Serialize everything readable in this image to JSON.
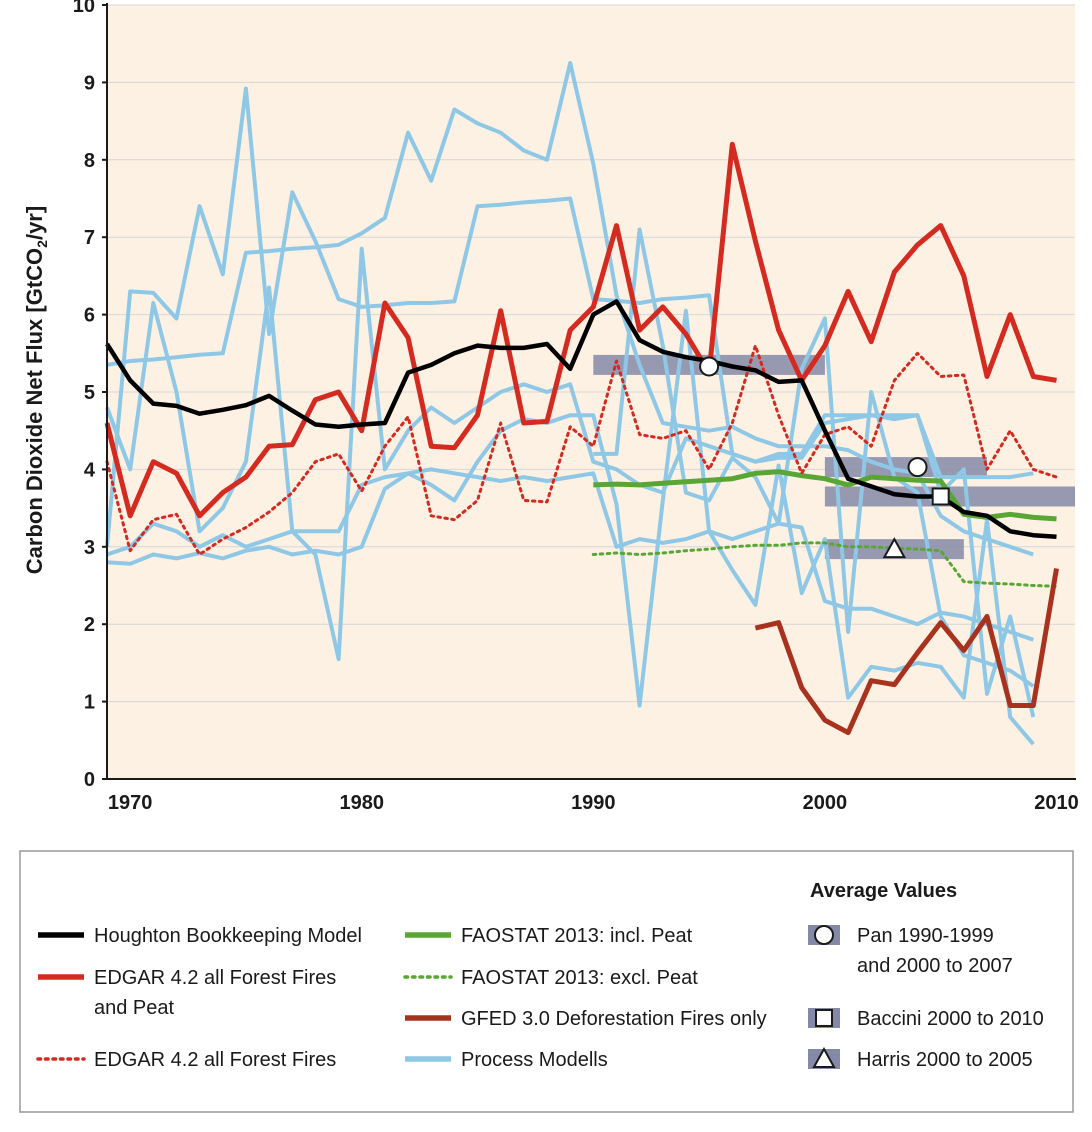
{
  "chart_data": {
    "type": "line",
    "ylabel": "Carbon Dioxide Net Flux [GtCO2/yr]",
    "ylabel_parts": {
      "main": "Carbon Dioxide Net Flux [GtCO",
      "sub": "2",
      "tail": "/yr]"
    },
    "xlim": [
      1969,
      2010.8
    ],
    "ylim": [
      0,
      10
    ],
    "x_ticks": [
      1970,
      1980,
      1990,
      2000,
      2010
    ],
    "y_ticks": [
      0,
      1,
      2,
      3,
      4,
      5,
      6,
      7,
      8,
      9,
      10
    ],
    "grid": "horizontal",
    "background": "#fdf1e3",
    "series": [
      {
        "name": "Process Modells",
        "color": "#8ec8e6",
        "style": "solid",
        "x": [
          1969,
          1970,
          1971,
          1972,
          1973,
          1974,
          1975,
          1976,
          1977,
          1978,
          1979,
          1980,
          1981,
          1982,
          1983,
          1984,
          1985,
          1986,
          1987,
          1988,
          1989,
          1990,
          1991,
          1992,
          1993,
          1994,
          1995,
          1996,
          1997,
          1998,
          1999,
          2000,
          2001,
          2002,
          2003,
          2004,
          2005,
          2006,
          2007,
          2008,
          2009
        ],
        "y": [
          4.8,
          4.0,
          6.15,
          5.0,
          3.2,
          3.5,
          4.1,
          6.35,
          3.2,
          2.9,
          1.55,
          6.85,
          4.0,
          4.5,
          4.8,
          4.6,
          4.8,
          5.0,
          5.1,
          5.0,
          5.1,
          4.1,
          4.0,
          3.8,
          3.7,
          4.4,
          4.3,
          4.2,
          4.1,
          4.2,
          4.2,
          4.7,
          4.7,
          4.7,
          4.7,
          4.7,
          3.9,
          3.9,
          3.9,
          3.9,
          3.95
        ]
      },
      {
        "name": "Process Modells",
        "color": "#8ec8e6",
        "style": "solid",
        "x": [
          1969,
          1970,
          1971,
          1972,
          1973,
          1974,
          1975,
          1976,
          1977,
          1978,
          1979,
          1980,
          1981,
          1982,
          1983,
          1984,
          1985,
          1986,
          1987,
          1988,
          1989,
          1990,
          1991,
          1992,
          1993,
          1994,
          1995,
          1996,
          1997,
          1998,
          1999,
          2000,
          2001,
          2002,
          2003,
          2004,
          2005,
          2006,
          2007,
          2008,
          2009
        ],
        "y": [
          5.35,
          5.4,
          5.42,
          5.45,
          5.48,
          5.5,
          6.8,
          6.82,
          6.85,
          6.87,
          6.9,
          7.05,
          7.25,
          8.35,
          7.73,
          8.65,
          8.47,
          8.35,
          8.12,
          8.0,
          9.25,
          7.95,
          6.25,
          5.35,
          4.6,
          4.55,
          4.5,
          4.55,
          4.4,
          4.3,
          4.3,
          4.3,
          4.25,
          4.1,
          4.0,
          3.95,
          3.4,
          3.2,
          3.1,
          3.0,
          2.9
        ]
      },
      {
        "name": "Process Modells",
        "color": "#8ec8e6",
        "style": "solid",
        "x": [
          1969,
          1970,
          1971,
          1972,
          1973,
          1974,
          1975,
          1976,
          1977,
          1978,
          1979,
          1980,
          1981,
          1982,
          1983,
          1984,
          1985,
          1986,
          1987,
          1988,
          1989,
          1990,
          1991,
          1992,
          1993,
          1994,
          1995,
          1996,
          1997,
          1998,
          1999,
          2000,
          2001,
          2002,
          2003,
          2004,
          2005,
          2006,
          2007,
          2008,
          2009
        ],
        "y": [
          3.0,
          6.3,
          6.28,
          5.95,
          7.4,
          6.52,
          8.92,
          5.75,
          7.58,
          6.95,
          6.2,
          6.1,
          6.12,
          6.15,
          6.15,
          6.17,
          7.4,
          7.42,
          7.45,
          7.47,
          7.5,
          6.2,
          6.18,
          6.15,
          6.2,
          6.22,
          6.25,
          4.2,
          4.1,
          4.15,
          4.15,
          4.6,
          4.65,
          4.7,
          4.65,
          4.7,
          3.7,
          4.0,
          1.1,
          2.1,
          0.8
        ]
      },
      {
        "name": "Process Modells",
        "color": "#8ec8e6",
        "style": "solid",
        "x": [
          1969,
          1970,
          1971,
          1972,
          1973,
          1974,
          1975,
          1976,
          1977,
          1978,
          1979,
          1980,
          1981,
          1982,
          1983,
          1984,
          1985,
          1986,
          1987,
          1988,
          1989,
          1990,
          1991,
          1992,
          1993,
          1994,
          1995,
          1996,
          1997,
          1998,
          1999,
          2000,
          2001,
          2002,
          2003,
          2004,
          2005,
          2006,
          2007,
          2008,
          2009
        ],
        "y": [
          2.8,
          2.78,
          2.9,
          2.85,
          2.92,
          2.85,
          2.95,
          3.0,
          2.9,
          2.95,
          2.9,
          3.0,
          3.75,
          3.95,
          4.0,
          3.95,
          3.9,
          3.85,
          3.9,
          3.85,
          3.9,
          3.95,
          3.0,
          3.1,
          3.05,
          3.1,
          3.2,
          3.1,
          3.2,
          3.3,
          3.25,
          2.3,
          2.2,
          2.2,
          2.1,
          2.0,
          2.15,
          2.1,
          2.0,
          1.9,
          1.8
        ]
      },
      {
        "name": "Process Modells",
        "color": "#8ec8e6",
        "style": "solid",
        "x": [
          1969,
          1970,
          1971,
          1972,
          1973,
          1974,
          1975,
          1976,
          1977,
          1978,
          1979,
          1980,
          1981,
          1982,
          1983,
          1984,
          1985,
          1986,
          1987,
          1988,
          1989,
          1990,
          1991,
          1992,
          1993,
          1994,
          1995,
          1996,
          1997,
          1998,
          1999,
          2000,
          2001,
          2002,
          2003,
          2004,
          2005,
          2006,
          2007,
          2008,
          2009
        ],
        "y": [
          2.9,
          3.0,
          3.3,
          3.2,
          3.0,
          3.15,
          3.0,
          3.1,
          3.2,
          3.2,
          3.2,
          3.8,
          3.9,
          3.95,
          3.8,
          3.6,
          4.1,
          4.5,
          4.65,
          4.6,
          4.7,
          4.7,
          3.55,
          0.95,
          3.6,
          6.05,
          3.2,
          2.7,
          2.25,
          4.05,
          2.4,
          3.1,
          1.05,
          1.45,
          1.4,
          1.5,
          1.45,
          1.05,
          3.35,
          0.8,
          0.45
        ]
      },
      {
        "name": "Process Modells",
        "color": "#8ec8e6",
        "style": "solid",
        "x": [
          1990,
          1991,
          1992,
          1993,
          1994,
          1995,
          1996,
          1997,
          1998,
          1999,
          2000,
          2001,
          2002,
          2003,
          2004,
          2005,
          2006,
          2007,
          2008,
          2009
        ],
        "y": [
          4.2,
          4.2,
          7.1,
          5.6,
          3.7,
          3.6,
          4.15,
          3.9,
          3.3,
          5.3,
          5.95,
          1.9,
          5.0,
          3.9,
          3.7,
          2.1,
          1.6,
          1.5,
          1.4,
          1.2
        ]
      },
      {
        "name": "FAOSTAT 2013: excl. Peat",
        "color": "#5aa635",
        "style": "dotted",
        "x": [
          1990,
          1991,
          1992,
          1993,
          1994,
          1995,
          1996,
          1997,
          1998,
          1999,
          2000,
          2001,
          2002,
          2003,
          2004,
          2005,
          2006,
          2007,
          2008,
          2009,
          2010
        ],
        "y": [
          2.9,
          2.92,
          2.9,
          2.92,
          2.95,
          2.97,
          3.0,
          3.02,
          3.02,
          3.05,
          3.05,
          3.0,
          3.0,
          2.98,
          2.97,
          2.95,
          2.55,
          2.53,
          2.52,
          2.5,
          2.49
        ]
      },
      {
        "name": "FAOSTAT 2013: incl. Peat",
        "color": "#5aa635",
        "style": "solid",
        "x": [
          1990,
          1991,
          1992,
          1993,
          1994,
          1995,
          1996,
          1997,
          1998,
          1999,
          2000,
          2001,
          2002,
          2003,
          2004,
          2005,
          2006,
          2007,
          2008,
          2009,
          2010
        ],
        "y": [
          3.8,
          3.81,
          3.8,
          3.82,
          3.84,
          3.86,
          3.88,
          3.95,
          3.97,
          3.92,
          3.88,
          3.8,
          3.9,
          3.88,
          3.86,
          3.85,
          3.42,
          3.38,
          3.42,
          3.38,
          3.36
        ]
      },
      {
        "name": "EDGAR 4.2 all Forest Fires",
        "color": "#d42a20",
        "style": "dotted",
        "x": [
          1969,
          1970,
          1971,
          1972,
          1973,
          1974,
          1975,
          1976,
          1977,
          1978,
          1979,
          1980,
          1981,
          1982,
          1983,
          1984,
          1985,
          1986,
          1987,
          1988,
          1989,
          1990,
          1991,
          1992,
          1993,
          1994,
          1995,
          1996,
          1997,
          1998,
          1999,
          2000,
          2001,
          2002,
          2003,
          2004,
          2005,
          2006,
          2007,
          2008,
          2009,
          2010
        ],
        "y": [
          4.1,
          2.95,
          3.35,
          3.42,
          2.9,
          3.1,
          3.25,
          3.45,
          3.7,
          4.1,
          4.2,
          3.72,
          4.3,
          4.68,
          3.4,
          3.35,
          3.6,
          4.6,
          3.6,
          3.58,
          4.55,
          4.3,
          5.4,
          4.45,
          4.4,
          4.5,
          4.0,
          4.6,
          5.6,
          4.7,
          3.95,
          4.45,
          4.55,
          4.3,
          5.15,
          5.5,
          5.2,
          5.22,
          4.0,
          4.5,
          4.0,
          3.9
        ]
      },
      {
        "name": "EDGAR 4.2 all Forest Fires and Peat",
        "color": "#d42a20",
        "style": "solid",
        "x": [
          1969,
          1970,
          1971,
          1972,
          1973,
          1974,
          1975,
          1976,
          1977,
          1978,
          1979,
          1980,
          1981,
          1982,
          1983,
          1984,
          1985,
          1986,
          1987,
          1988,
          1989,
          1990,
          1991,
          1992,
          1993,
          1994,
          1995,
          1996,
          1997,
          1998,
          1999,
          2000,
          2001,
          2002,
          2003,
          2004,
          2005,
          2006,
          2007,
          2008,
          2009,
          2010
        ],
        "y": [
          4.6,
          3.4,
          4.1,
          3.95,
          3.4,
          3.7,
          3.9,
          4.3,
          4.32,
          4.9,
          5.0,
          4.5,
          6.15,
          5.7,
          4.3,
          4.28,
          4.7,
          6.05,
          4.6,
          4.62,
          5.8,
          6.1,
          7.15,
          5.8,
          6.1,
          5.75,
          5.25,
          8.2,
          6.95,
          5.8,
          5.15,
          5.6,
          6.3,
          5.65,
          6.55,
          6.9,
          7.15,
          6.5,
          5.2,
          6.0,
          5.2,
          5.15
        ]
      },
      {
        "name": "GFED 3.0 Deforestation Fires only",
        "color": "#a8321e",
        "style": "solid",
        "x": [
          1997,
          1998,
          1999,
          2000,
          2001,
          2002,
          2003,
          2004,
          2005,
          2006,
          2007,
          2008,
          2009,
          2010
        ],
        "y": [
          1.95,
          2.02,
          1.18,
          0.76,
          0.6,
          1.27,
          1.22,
          1.63,
          2.02,
          1.66,
          2.1,
          0.95,
          0.95,
          2.72
        ]
      },
      {
        "name": "Houghton Bookkeeping Model",
        "color": "#000000",
        "style": "solid",
        "x": [
          1969,
          1970,
          1971,
          1972,
          1973,
          1974,
          1975,
          1976,
          1977,
          1978,
          1979,
          1980,
          1981,
          1982,
          1983,
          1984,
          1985,
          1986,
          1987,
          1988,
          1989,
          1990,
          1991,
          1992,
          1993,
          1994,
          1995,
          1996,
          1997,
          1998,
          1999,
          2000,
          2001,
          2002,
          2003,
          2004,
          2005,
          2006,
          2007,
          2008,
          2009,
          2010
        ],
        "y": [
          5.62,
          5.15,
          4.85,
          4.82,
          4.72,
          4.77,
          4.83,
          4.95,
          4.76,
          4.58,
          4.55,
          4.58,
          4.6,
          5.25,
          5.35,
          5.5,
          5.6,
          5.57,
          5.57,
          5.62,
          5.3,
          6.0,
          6.17,
          5.67,
          5.52,
          5.45,
          5.4,
          5.33,
          5.28,
          5.13,
          5.15,
          4.5,
          3.88,
          3.78,
          3.68,
          3.65,
          3.65,
          3.45,
          3.4,
          3.2,
          3.15,
          3.13
        ]
      }
    ],
    "average_bars": [
      {
        "name": "Pan 1990-1999",
        "x0": 1990,
        "x1": 2000,
        "y": 5.35,
        "marker": "circle",
        "marker_x": 1995,
        "marker_y": 5.33
      },
      {
        "name": "Pan 2000 to 2007",
        "x0": 2000,
        "x1": 2007,
        "y": 4.03,
        "marker": "circle",
        "marker_x": 2004,
        "marker_y": 4.03
      },
      {
        "name": "Baccini 2000 to 2010",
        "x0": 2000,
        "x1": 2010.8,
        "y": 3.65,
        "marker": "square",
        "marker_x": 2005,
        "marker_y": 3.65
      },
      {
        "name": "Harris 2000 to 2005",
        "x0": 2000,
        "x1": 2006,
        "y": 2.97,
        "marker": "triangle",
        "marker_x": 2003,
        "marker_y": 2.97
      }
    ]
  },
  "legend": {
    "title": "Average Values",
    "items": [
      {
        "label": "Houghton Bookkeeping Model",
        "color": "#000000",
        "style": "solid"
      },
      {
        "label": "EDGAR 4.2 all Forest Fires",
        "label2": "and Peat",
        "color": "#d42a20",
        "style": "solid"
      },
      {
        "label": "EDGAR 4.2 all Forest Fires",
        "color": "#d42a20",
        "style": "dotted"
      },
      {
        "label": "FAOSTAT 2013: incl. Peat",
        "color": "#5aa635",
        "style": "solid"
      },
      {
        "label": "FAOSTAT 2013: excl. Peat",
        "color": "#5aa635",
        "style": "dotted"
      },
      {
        "label": "GFED 3.0 Deforestation Fires only",
        "color": "#a8321e",
        "style": "solid"
      },
      {
        "label": "Process Modells",
        "color": "#8ec8e6",
        "style": "solid"
      }
    ],
    "averages": [
      {
        "label": "Pan 1990-1999",
        "label2": "and 2000 to 2007",
        "marker": "circle"
      },
      {
        "label": "Baccini 2000 to 2010",
        "marker": "square"
      },
      {
        "label": "Harris 2000 to 2005",
        "marker": "triangle"
      }
    ]
  }
}
